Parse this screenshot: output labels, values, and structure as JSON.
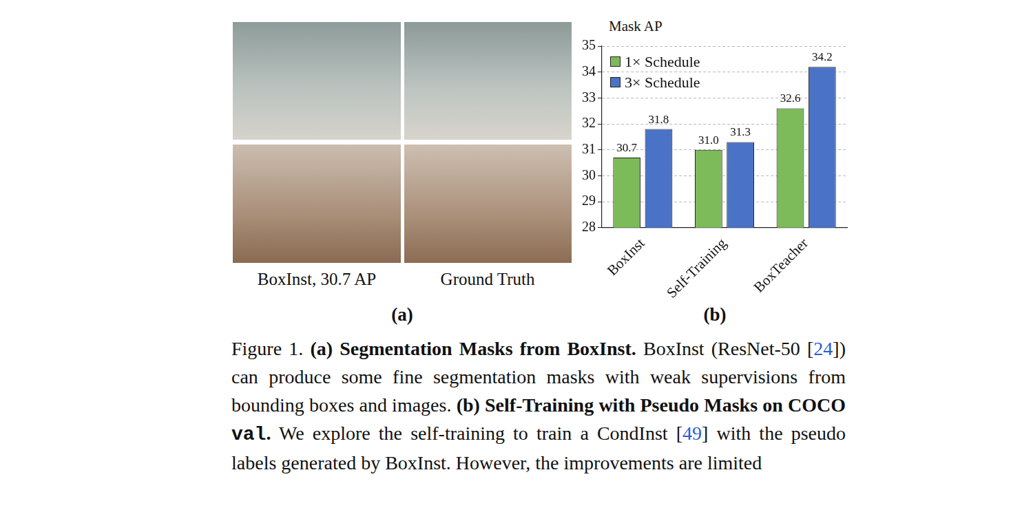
{
  "panel_a": {
    "label": "(a)",
    "image_captions": [
      "BoxInst, 30.7 AP",
      "Ground Truth"
    ]
  },
  "chart_data": {
    "type": "bar",
    "y_label": "Mask AP",
    "categories": [
      "BoxInst",
      "Self-Training",
      "BoxTeacher"
    ],
    "series": [
      {
        "name": "1× Schedule",
        "color": "#7dbb5a",
        "values": [
          30.7,
          31.0,
          32.6
        ],
        "value_labels": [
          "30.7",
          "31.0",
          "32.6"
        ]
      },
      {
        "name": "3× Schedule",
        "color": "#4a72c6",
        "values": [
          31.8,
          31.3,
          34.2
        ],
        "value_labels": [
          "31.8",
          "31.3",
          "34.2"
        ]
      }
    ],
    "ylim": [
      28,
      35
    ],
    "yticks": [
      28,
      29,
      30,
      31,
      32,
      33,
      34,
      35
    ],
    "grid": true,
    "legend": "top-left",
    "data_labels": true
  },
  "panel_b": {
    "label": "(b)"
  },
  "caption": {
    "parts": [
      {
        "text": "Figure 1. ",
        "style": "plain"
      },
      {
        "text": "(a) Segmentation Masks from BoxInst.",
        "style": "bold"
      },
      {
        "text": " BoxInst (ResNet-50 [",
        "style": "plain"
      },
      {
        "text": "24",
        "style": "ref"
      },
      {
        "text": "]) can produce some fine segmentation masks with weak supervisions from bounding boxes and images. ",
        "style": "plain"
      },
      {
        "text": "(b) Self-Training with Pseudo Masks on COCO ",
        "style": "bold"
      },
      {
        "text": "val",
        "style": "mono"
      },
      {
        "text": ".",
        "style": "bold"
      },
      {
        "text": " We explore the self-training to train a CondInst [",
        "style": "plain"
      },
      {
        "text": "49",
        "style": "ref"
      },
      {
        "text": "] with the pseudo labels generated by BoxInst. However, the improvements are limited",
        "style": "plain"
      }
    ]
  }
}
